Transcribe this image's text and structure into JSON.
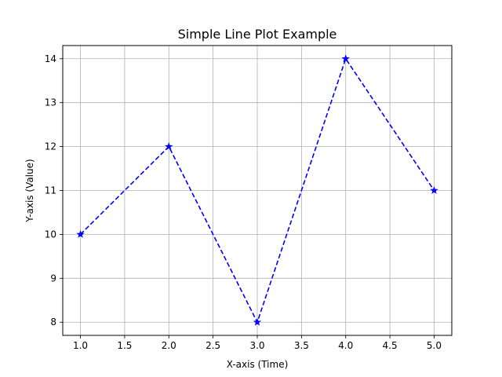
{
  "chart_data": {
    "type": "line",
    "title": "Simple Line Plot Example",
    "xlabel": "X-axis (Time)",
    "ylabel": "Y-axis (Value)",
    "xlim": [
      0.8,
      5.2
    ],
    "ylim": [
      7.7,
      14.3
    ],
    "x_ticks": [
      1.0,
      1.5,
      2.0,
      2.5,
      3.0,
      3.5,
      4.0,
      4.5,
      5.0
    ],
    "x_tick_labels": [
      "1.0",
      "1.5",
      "2.0",
      "2.5",
      "3.0",
      "3.5",
      "4.0",
      "4.5",
      "5.0"
    ],
    "y_ticks": [
      8,
      9,
      10,
      11,
      12,
      13,
      14
    ],
    "y_tick_labels": [
      "8",
      "9",
      "10",
      "11",
      "12",
      "13",
      "14"
    ],
    "grid": true,
    "legend": false,
    "series": [
      {
        "x": [
          1,
          2,
          3,
          4,
          5
        ],
        "values": [
          10,
          12,
          8,
          14,
          11
        ],
        "color": "#0000ff",
        "line_style": "dashed",
        "marker": "star"
      }
    ]
  },
  "colors": {
    "grid": "#b0b0b0",
    "axes": "#000000",
    "background": "#ffffff"
  }
}
